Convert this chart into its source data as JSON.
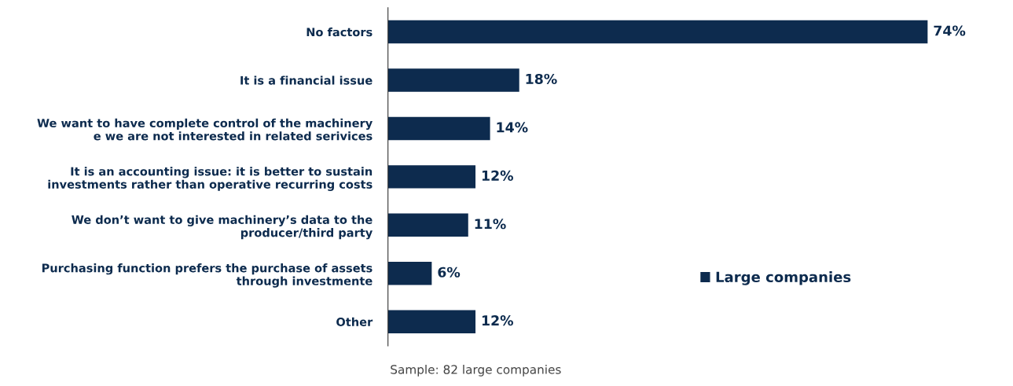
{
  "chart_data": {
    "type": "bar",
    "orientation": "horizontal",
    "categories": [
      "No factors",
      "It is a financial issue",
      "We want to have complete control of the machinery\ne we are not interested in related serivices",
      "It is an accounting issue: it is better to sustain\ninvestments rather than operative recurring costs",
      "We don’t want to give machinery’s data to the\nproducer/third party",
      "Purchasing function prefers the purchase of assets\nthrough investmente",
      "Other"
    ],
    "series": [
      {
        "name": "Large companies",
        "color": "#0d2b4e",
        "values": [
          74,
          18,
          14,
          12,
          11,
          6,
          12
        ],
        "value_labels": [
          "74%",
          "18%",
          "14%",
          "12%",
          "11%",
          "6%",
          "12%"
        ]
      }
    ],
    "legend": "right",
    "annotations": [
      "Sample: 82 large companies"
    ]
  }
}
